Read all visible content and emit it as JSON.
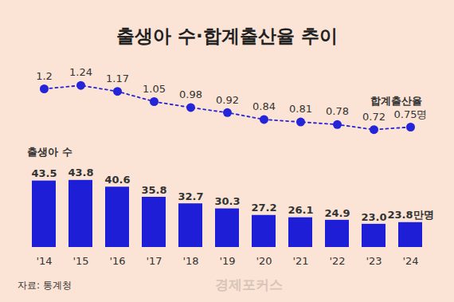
{
  "chart_data": {
    "type": "combo",
    "title": "출생아 수·합계출산율 추이",
    "categories": [
      "'14",
      "'15",
      "'16",
      "'17",
      "'18",
      "'19",
      "'20",
      "'21",
      "'22",
      "'23",
      "'24"
    ],
    "series": [
      {
        "name": "출생아 수",
        "type": "bar",
        "color": "#1e1ed6",
        "values": [
          43.5,
          43.8,
          40.6,
          35.8,
          32.7,
          30.3,
          27.2,
          26.1,
          24.9,
          23.0,
          23.8
        ],
        "value_labels": [
          "43.5",
          "43.8",
          "40.6",
          "35.8",
          "32.7",
          "30.3",
          "27.2",
          "26.1",
          "24.9",
          "23.0",
          "23.8만명"
        ]
      },
      {
        "name": "합계출산율",
        "type": "line",
        "axis": "y2",
        "color": "#2424d8",
        "line_style": "dashed",
        "marker": "circle",
        "values": [
          1.2,
          1.24,
          1.17,
          1.05,
          0.98,
          0.92,
          0.84,
          0.81,
          0.78,
          0.72,
          0.75
        ],
        "value_labels": [
          "1.2",
          "1.24",
          "1.17",
          "1.05",
          "0.98",
          "0.92",
          "0.84",
          "0.81",
          "0.78",
          "0.72",
          "0.75명"
        ]
      }
    ],
    "ylim": [
      12,
      46
    ],
    "y2lim": [
      0.6,
      1.35
    ],
    "data_labels": true,
    "tick_labels": "x",
    "grid": false,
    "source": "자료: 통계청",
    "watermark": "경제포커스"
  }
}
